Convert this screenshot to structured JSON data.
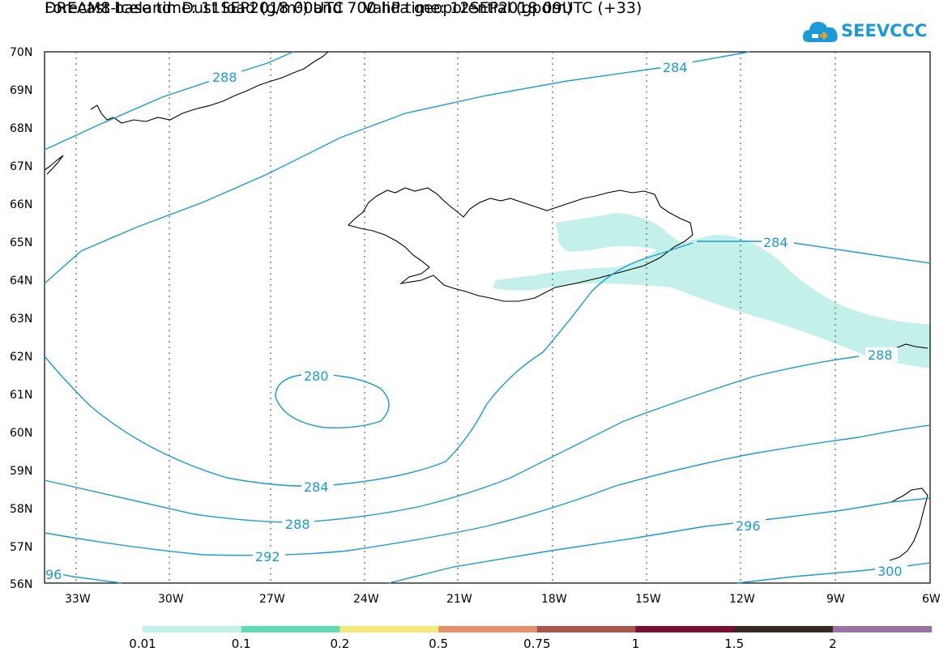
{
  "title_line1": "DREAM8-Iceland: Dust load (g/m²) and 700 hPa geopotential (gpdm)",
  "title_line2": "Forecast base time: 11SEP2018 00UTC    Valid time: 12SEP2018 09UTC (+33)",
  "logo_text": "SEEVCCC",
  "y_ticks": [
    "70N",
    "69N",
    "68N",
    "67N",
    "66N",
    "65N",
    "64N",
    "63N",
    "62N",
    "61N",
    "60N",
    "59N",
    "58N",
    "57N",
    "56N"
  ],
  "x_ticks": [
    "33W",
    "30W",
    "27W",
    "24W",
    "21W",
    "18W",
    "15W",
    "12W",
    "9W",
    "6W"
  ],
  "contour_labels": [
    "288",
    "284",
    "284",
    "280",
    "284",
    "288",
    "288",
    "292",
    "296",
    "300",
    "96"
  ],
  "colorbar": {
    "colors": [
      "#c4f0ea",
      "#5fdcb4",
      "#f4e878",
      "#e8906a",
      "#a85448",
      "#7a0e2e",
      "#3a2a1e",
      "#9a72a4"
    ],
    "labels": [
      "0.01",
      "0.1",
      "0.2",
      "0.5",
      "0.75",
      "1",
      "1.5",
      "2"
    ]
  },
  "colors": {
    "contour": "#1a9ad9",
    "dust": "#c4f0ea",
    "coast": "#000000"
  }
}
